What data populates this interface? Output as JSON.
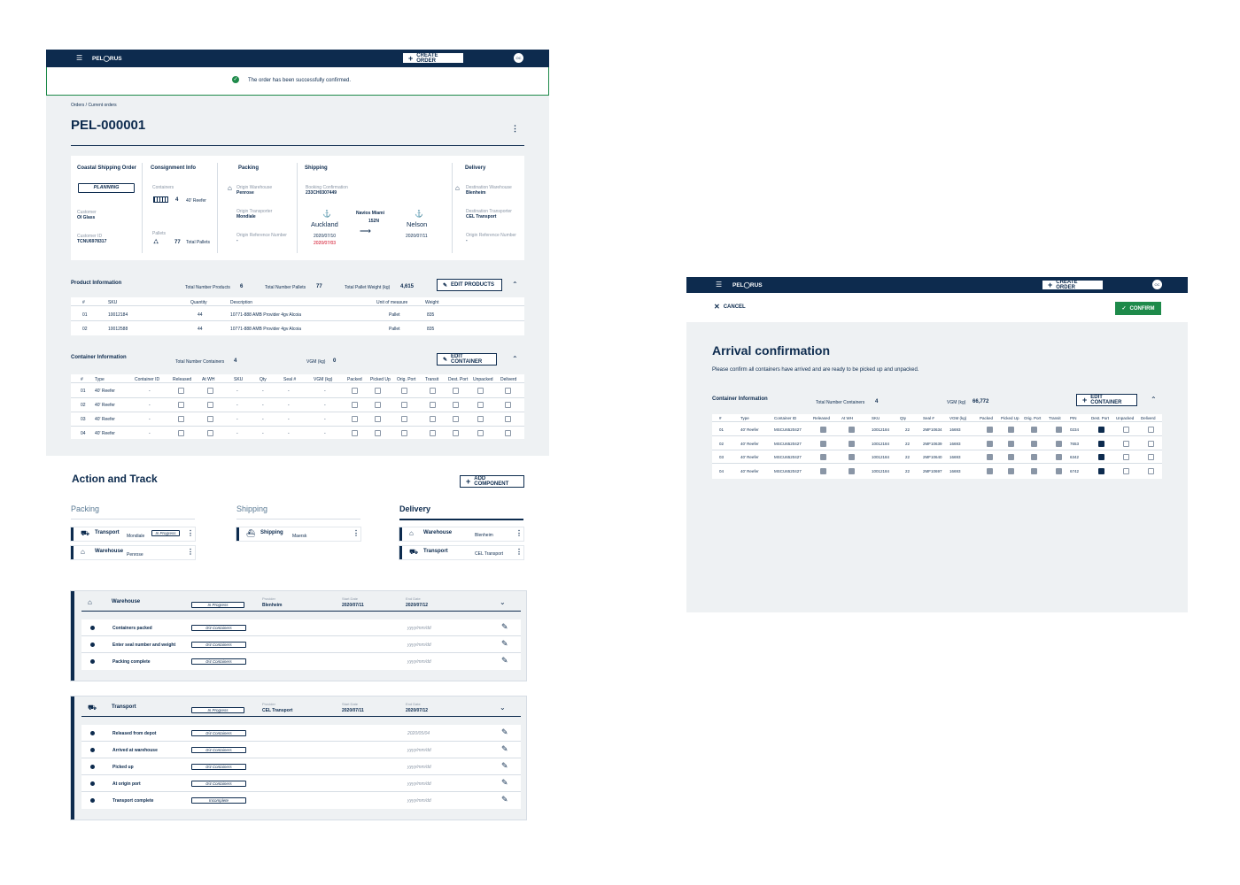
{
  "brand": "PEL◯RUS",
  "topbar": {
    "create_order": "CREATE ORDER",
    "avatar": "OC"
  },
  "toast": "The order has been successfully confirmed.",
  "breadcrumb": "Orders / Current orders",
  "order_id": "PEL-000001",
  "summary": {
    "coastal_title": "Coastal Shipping Order",
    "status": "PLANNING",
    "customer_label": "Customer",
    "customer": "OI Glass",
    "customer_id_label": "Customer ID",
    "customer_id": "TCNU6978317",
    "consignment_title": "Consignment Info",
    "containers_label": "Containers",
    "containers_count": "4",
    "containers_type": "40' Reefer",
    "pallets_label": "Pallets",
    "pallets_count": "77",
    "pallets_text": "Total Pallets",
    "packing_title": "Packing",
    "origin_wh_label": "Origin Warehouse",
    "origin_wh": "Penrose",
    "origin_tr_label": "Origin Transporter",
    "origin_tr": "Mondiale",
    "origin_ref_label": "Origin Reference Number",
    "origin_ref": "-",
    "shipping_title": "Shipping",
    "booking_label": "Booking Confirmation",
    "booking": "233CH0307449",
    "from": "Auckland",
    "vessel": "Navios Miami",
    "voyage": "152N",
    "to": "Nelson",
    "date_from": "2020/07/10",
    "date_from_alt": "2020/07/03",
    "date_to": "2020/07/11",
    "delivery_title": "Delivery",
    "dest_wh_label": "Destination Warehouse",
    "dest_wh": "Blenheim",
    "dest_tr_label": "Destination Transporter",
    "dest_tr": "CEL Transport",
    "origin_ref2_label": "Origin Reference Number",
    "origin_ref2": "-"
  },
  "product_info": {
    "title": "Product Information",
    "tnp_label": "Total Number Products",
    "tnp": "6",
    "tnpal_label": "Total Number Pallets",
    "tnpal": "77",
    "tpw_label": "Total Pallet Weight (kg)",
    "tpw": "4,615",
    "edit": "EDIT PRODUCTS",
    "headers": [
      "#",
      "SKU",
      "Quantity",
      "Description",
      "Unit of measure",
      "Weight"
    ],
    "rows": [
      [
        "01",
        "10012184",
        "44",
        "10771-888 AMB Provider 4gv Alcoia",
        "Pallet",
        "835"
      ],
      [
        "02",
        "10012588",
        "44",
        "10771-888 AMB Provider 4gv Alcoia",
        "Pallet",
        "835"
      ]
    ]
  },
  "container_info": {
    "title": "Container Information",
    "tnc_label": "Total Number Containers",
    "tnc": "4",
    "vgm_label": "VGM (kg)",
    "vgm": "0",
    "edit": "EDIT CONTAINER",
    "headers": [
      "#",
      "Type",
      "Container ID",
      "Released",
      "At WH",
      "SKU",
      "Qty",
      "Seal #",
      "VGM (kg)",
      "Packed",
      "Picked Up",
      "Orig. Port",
      "Transit",
      "Dest. Port",
      "Unpacked",
      "Deliverd"
    ],
    "rows": [
      [
        "01",
        "40' Reefer",
        "-",
        "-",
        "-",
        "-",
        "-"
      ],
      [
        "02",
        "40' Reefer",
        "-",
        "-",
        "-",
        "-",
        "-"
      ],
      [
        "03",
        "40' Reefer",
        "-",
        "-",
        "-",
        "-",
        "-"
      ],
      [
        "04",
        "40' Reefer",
        "-",
        "-",
        "-",
        "-",
        "-"
      ]
    ]
  },
  "action": {
    "title": "Action and Track",
    "add": "ADD COMPONENT",
    "cols": [
      {
        "title": "Packing",
        "items": [
          {
            "name": "Transport",
            "sub": "Mondiale",
            "pill": "In Progress"
          },
          {
            "name": "Warehouse",
            "sub": "Penrose"
          }
        ]
      },
      {
        "title": "Shipping",
        "items": [
          {
            "name": "Shipping",
            "sub": "Maersk"
          }
        ]
      },
      {
        "title": "Delivery",
        "items": [
          {
            "name": "Warehouse",
            "sub": "Blenheim"
          },
          {
            "name": "Transport",
            "sub": "CEL Transport"
          }
        ]
      }
    ]
  },
  "panels": [
    {
      "name": "Warehouse",
      "pill": "In Progress",
      "provider_label": "Provider",
      "provider": "Blenheim",
      "start_label": "Start Date",
      "start": "2020/07/11",
      "end_label": "End Date",
      "end": "2020/07/12",
      "tasks": [
        {
          "name": "Containers packed",
          "pill": "0/4 Containers",
          "date": "yyyy/mm/dd"
        },
        {
          "name": "Enter seal number and weight",
          "pill": "0/4 Containers",
          "date": "yyyy/mm/dd"
        },
        {
          "name": "Packing complete",
          "pill": "0/4 Containers",
          "date": "yyyy/mm/dd"
        }
      ]
    },
    {
      "name": "Transport",
      "pill": "In Progress",
      "provider_label": "Provider",
      "provider": "CEL Transport",
      "start_label": "Start Date",
      "start": "2020/07/11",
      "end_label": "End Date",
      "end": "2020/07/12",
      "tasks": [
        {
          "name": "Released from depot",
          "pill": "0/4 Containers",
          "date": "2020/05/04"
        },
        {
          "name": "Arrived at warehouse",
          "pill": "0/4 Containers",
          "date": "yyyy/mm/dd"
        },
        {
          "name": "Picked up",
          "pill": "0/4 Containers",
          "date": "yyyy/mm/dd"
        },
        {
          "name": "At origin port",
          "pill": "0/4 Containers",
          "date": "yyyy/mm/dd"
        },
        {
          "name": "Transport complete",
          "pill": "Incomplete",
          "date": "yyyy/mm/dd"
        }
      ]
    }
  ],
  "arrival": {
    "cancel": "CANCEL",
    "confirm": "CONFIRM",
    "title": "Arrival confirmation",
    "desc": "Please confirm all containers have arrived and are ready to be picked up and unpacked.",
    "ci_title": "Container Information",
    "tnc_label": "Total Number Containers",
    "tnc": "4",
    "vgm_label": "VGM (kg)",
    "vgm": "66,772",
    "edit": "EDIT CONTAINER",
    "headers": [
      "#",
      "Type",
      "Container ID",
      "Released",
      "At WH",
      "SKU",
      "Qty",
      "Seal #",
      "VGM (kg)",
      "Packed",
      "Picked Up",
      "Orig. Port",
      "Transit",
      "PIN",
      "Dest. Port",
      "Unpacked",
      "Deliverd"
    ],
    "rows": [
      [
        "01",
        "40' Reefer",
        "MSCU6520427",
        "10012184",
        "22",
        "2MF10634",
        "16693",
        "0234"
      ],
      [
        "02",
        "40' Reefer",
        "MSCU6520427",
        "10012184",
        "22",
        "2MF10639",
        "16693",
        "7653"
      ],
      [
        "03",
        "40' Reefer",
        "MSCU6520427",
        "10012184",
        "22",
        "2MF10640",
        "16693",
        "6342"
      ],
      [
        "04",
        "40' Reefer",
        "MSCU6520427",
        "10012184",
        "22",
        "2MF10697",
        "16693",
        "6742"
      ]
    ]
  }
}
